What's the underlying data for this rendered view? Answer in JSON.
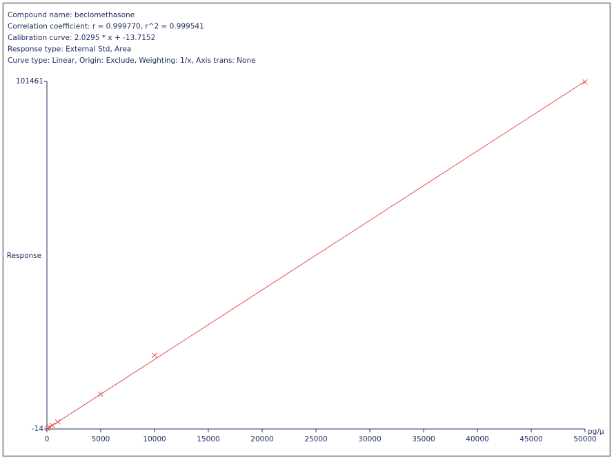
{
  "chart_data": {
    "type": "scatter",
    "header": [
      "Compound name: beclomethasone",
      "Correlation coefficient: r = 0.999770, r^2 = 0.999541",
      "Calibration curve: 2.0295 * x + -13.7152",
      "Response type: External Std, Area",
      "Curve type: Linear, Origin: Exclude, Weighting: 1/x, Axis trans: None"
    ],
    "ylabel": "Response",
    "xlabel": "pg/μ",
    "x": [
      50,
      250,
      500,
      1000,
      5000,
      10000,
      50000
    ],
    "values": [
      100,
      510,
      1010,
      2050,
      10130,
      21500,
      101300
    ],
    "color": "#e0504f",
    "fit": {
      "slope": 2.0295,
      "intercept": -13.7152
    },
    "xlim": [
      0,
      50000
    ],
    "xticks": [
      0,
      5000,
      10000,
      15000,
      20000,
      25000,
      30000,
      35000,
      40000,
      45000,
      50000
    ],
    "ylim": [
      -14,
      101461
    ],
    "yticks": [
      -14,
      101461
    ]
  }
}
